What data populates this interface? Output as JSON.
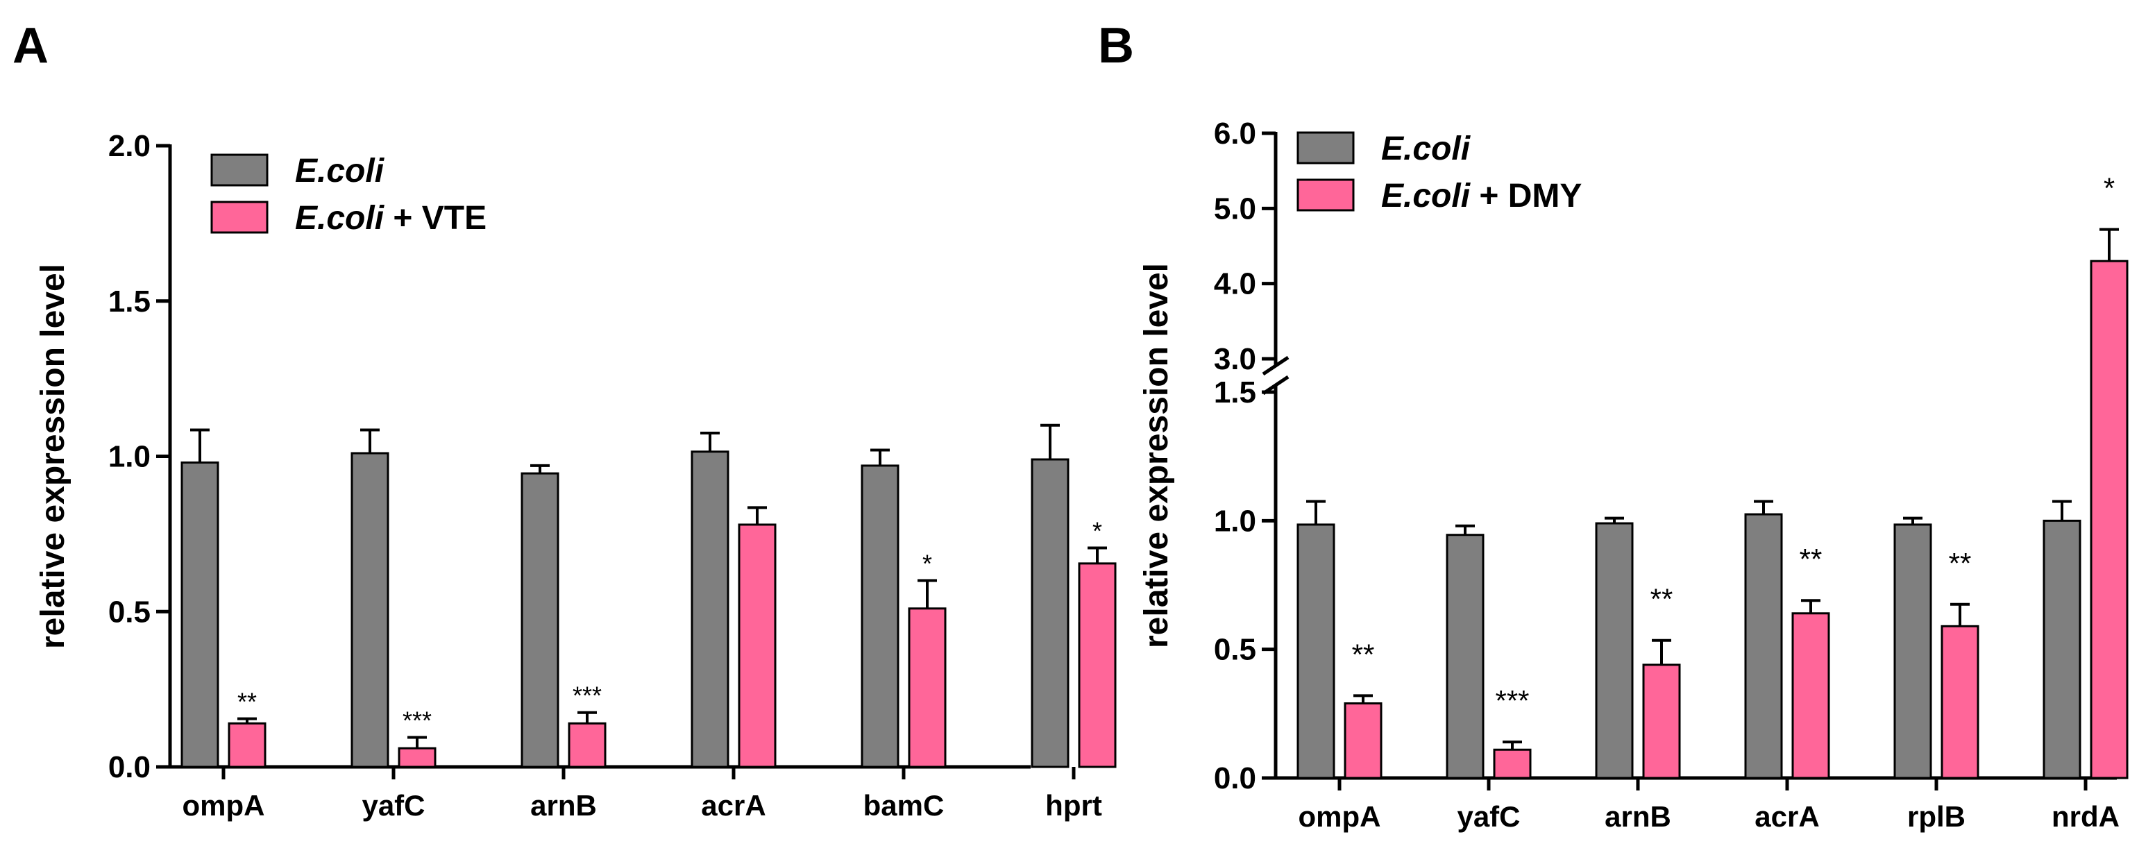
{
  "chart_data": [
    {
      "panel": "A",
      "type": "bar",
      "title": "",
      "xlabel": "",
      "ylabel": "relative expression level",
      "ylim": [
        0,
        2.0
      ],
      "yticks": [
        "0.0",
        "0.5",
        "1.0",
        "1.5",
        "2.0"
      ],
      "categories": [
        "ompA",
        "yafC",
        "arnB",
        "acrA",
        "bamC",
        "hprt"
      ],
      "series": [
        {
          "name": "E.coli",
          "legend_italic": "E.coli",
          "legend_suffix": "",
          "color": "#7f7f7f",
          "values": [
            0.98,
            1.01,
            0.945,
            1.015,
            0.97,
            0.99
          ],
          "errors": [
            0.105,
            0.075,
            0.025,
            0.06,
            0.05,
            0.11
          ]
        },
        {
          "name": "E.coli + VTE",
          "legend_italic": "E.coli",
          "legend_suffix": " + VTE",
          "color": "#ff6699",
          "values": [
            0.14,
            0.06,
            0.14,
            0.78,
            0.51,
            0.655
          ],
          "errors": [
            0.015,
            0.035,
            0.035,
            0.055,
            0.09,
            0.05
          ]
        }
      ],
      "annotations": [
        "**",
        "***",
        "***",
        "",
        "*",
        "*"
      ],
      "legend_position": "top-left"
    },
    {
      "panel": "B",
      "type": "bar",
      "title": "",
      "xlabel": "",
      "ylabel": "relative expression level",
      "ylim": [
        0,
        6.0
      ],
      "axis_break": [
        1.5,
        3.0
      ],
      "yticks_lower": [
        "0.0",
        "0.5",
        "1.0",
        "1.5"
      ],
      "yticks_upper": [
        "3.0",
        "4.0",
        "5.0",
        "6.0"
      ],
      "categories": [
        "ompA",
        "yafC",
        "arnB",
        "acrA",
        "rplB",
        "nrdA"
      ],
      "series": [
        {
          "name": "E.coli",
          "legend_italic": "E.coli",
          "legend_suffix": "",
          "color": "#7f7f7f",
          "values": [
            0.985,
            0.945,
            0.99,
            1.025,
            0.985,
            1.0
          ],
          "errors": [
            0.09,
            0.035,
            0.02,
            0.05,
            0.025,
            0.075
          ]
        },
        {
          "name": "E.coli + DMY",
          "legend_italic": "E.coli",
          "legend_suffix": " + DMY",
          "color": "#ff6699",
          "values": [
            0.29,
            0.11,
            0.44,
            0.64,
            0.59,
            4.3
          ],
          "errors": [
            0.03,
            0.03,
            0.095,
            0.05,
            0.085,
            0.42
          ]
        }
      ],
      "annotations": [
        "**",
        "***",
        "**",
        "**",
        "**",
        "*"
      ],
      "legend_position": "top-left"
    }
  ]
}
